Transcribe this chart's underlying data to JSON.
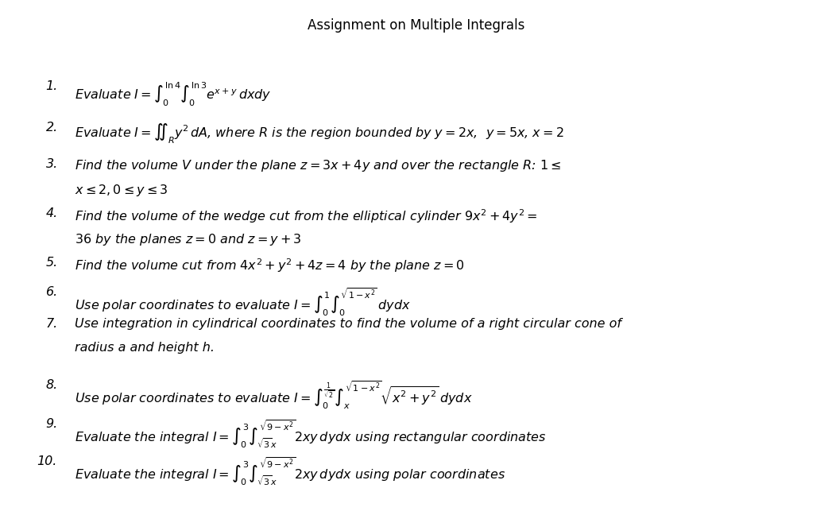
{
  "title": "Assignment on Multiple Integrals",
  "title_fontsize": 12,
  "background_color": "#ffffff",
  "text_color": "#000000",
  "fs": 11.5
}
